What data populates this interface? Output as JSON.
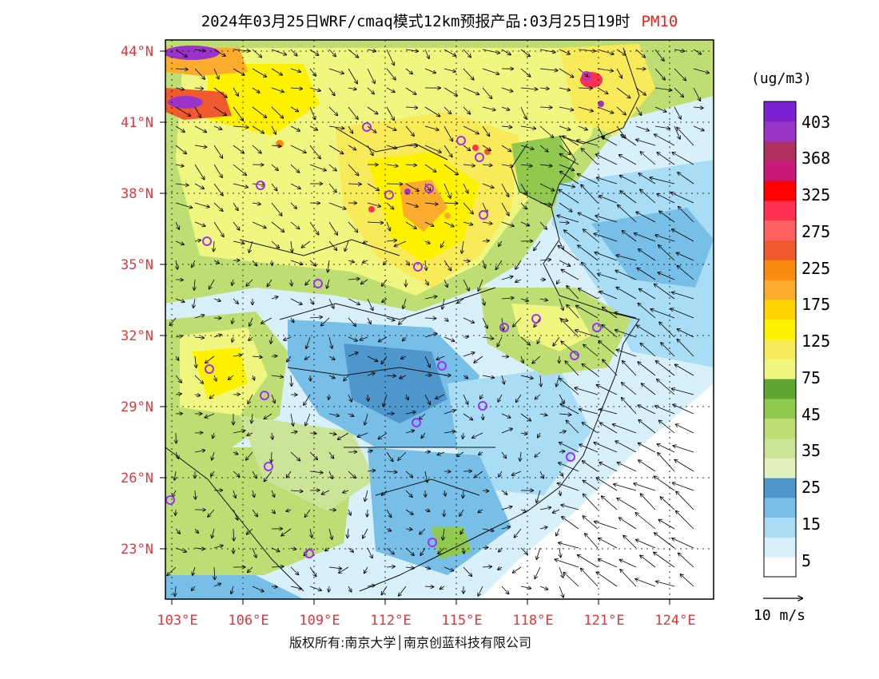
{
  "title": {
    "main": "2024年03月25日WRF/cmaq模式12km预报产品:03月25日19时",
    "species": "PM10"
  },
  "colors": {
    "title_species": "#e8241c",
    "axis_labels": "#e0383c",
    "city_marker": "#9b30ff"
  },
  "latitude_labels": [
    "44°N",
    "41°N",
    "38°N",
    "35°N",
    "32°N",
    "29°N",
    "26°N",
    "23°N"
  ],
  "longitude_labels": [
    "103°E",
    "106°E",
    "109°E",
    "112°E",
    "115°E",
    "118°E",
    "121°E",
    "124°E"
  ],
  "colorbar": {
    "unit": "(ug/m3)",
    "colors": [
      "#ffffff",
      "#d8f0fa",
      "#a8ddf5",
      "#78bfe8",
      "#4e97cc",
      "#e2efbf",
      "#cbe498",
      "#bede74",
      "#8fc94e",
      "#5da632",
      "#f0f780",
      "#f8ea58",
      "#fff200",
      "#ffd400",
      "#fcac2c",
      "#fb8a10",
      "#ef5a2e",
      "#ff6060",
      "#ff3050",
      "#ff0000",
      "#c8187a",
      "#b03060",
      "#9a34c8",
      "#7a22d2"
    ],
    "labels": [
      "5",
      "15",
      "25",
      "35",
      "45",
      "75",
      "125",
      "175",
      "225",
      "275",
      "325",
      "368",
      "403"
    ]
  },
  "vector_legend": "10 m/s",
  "copyright": "版权所有:南京大学│南京创蓝科技有限公司"
}
